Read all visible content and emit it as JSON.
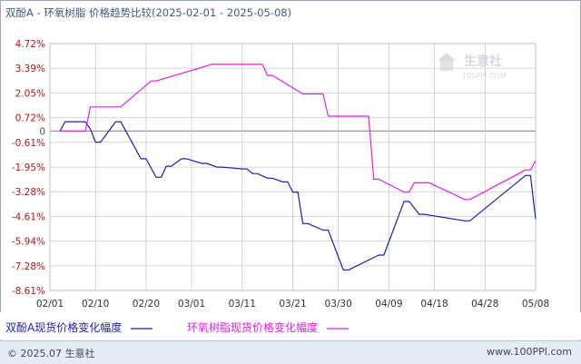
{
  "title": "双酚A - 环氧树脂 价格趋势比较(2025-02-01 - 2025-05-08)",
  "watermark": {
    "name": "生意社",
    "site": "100PPI.COM"
  },
  "footer": {
    "left": "© 2025.07 生意社",
    "right": "www.100PPI.com"
  },
  "colors": {
    "grid": "#c5cbd4",
    "axis": "#9aa7b8",
    "tick_text": "#b01818",
    "bpa": "#1e1eb4",
    "epoxy": "#e21fe2"
  },
  "chart_data": {
    "type": "line",
    "ylim": [
      -8.61,
      4.72
    ],
    "yticks": [
      "4.72%",
      "3.39%",
      "2.05%",
      "0.72%",
      "0",
      "-0.61%",
      "-1.95%",
      "-3.28%",
      "-4.61%",
      "-5.94%",
      "-7.28%",
      "-8.61%"
    ],
    "ytick_values": [
      4.72,
      3.39,
      2.05,
      0.72,
      0,
      -0.61,
      -1.95,
      -3.28,
      -4.61,
      -5.94,
      -7.28,
      -8.61
    ],
    "xlim": [
      "2025-02-01",
      "2025-05-08"
    ],
    "xticks": [
      "02/01",
      "02/10",
      "02/20",
      "03/01",
      "03/11",
      "03/21",
      "03/30",
      "04/09",
      "04/18",
      "04/28",
      "05/08"
    ],
    "xtick_dates": [
      "2025-02-01",
      "2025-02-10",
      "2025-02-20",
      "2025-03-01",
      "2025-03-11",
      "2025-03-21",
      "2025-03-30",
      "2025-04-09",
      "2025-04-18",
      "2025-04-28",
      "2025-05-08"
    ],
    "legend_position": "bottom",
    "series": [
      {
        "name": "双酚A现货价格变化幅度",
        "x": [
          "2025-02-03",
          "2025-02-04",
          "2025-02-08",
          "2025-02-09",
          "2025-02-10",
          "2025-02-11",
          "2025-02-14",
          "2025-02-15",
          "2025-02-19",
          "2025-02-20",
          "2025-02-22",
          "2025-02-23",
          "2025-02-24",
          "2025-02-25",
          "2025-02-27",
          "2025-02-28",
          "2025-03-03",
          "2025-03-04",
          "2025-03-06",
          "2025-03-07",
          "2025-03-11",
          "2025-03-12",
          "2025-03-13",
          "2025-03-14",
          "2025-03-16",
          "2025-03-17",
          "2025-03-19",
          "2025-03-20",
          "2025-03-21",
          "2025-03-22",
          "2025-03-23",
          "2025-03-24",
          "2025-03-27",
          "2025-03-28",
          "2025-03-31",
          "2025-04-01",
          "2025-04-07",
          "2025-04-08",
          "2025-04-12",
          "2025-04-13",
          "2025-04-15",
          "2025-04-16",
          "2025-04-24",
          "2025-04-25",
          "2025-05-06",
          "2025-05-07",
          "2025-05-08"
        ],
        "y": [
          0,
          0.5,
          0.5,
          0.1,
          -0.6,
          -0.6,
          0.5,
          0.5,
          -1.5,
          -1.5,
          -2.5,
          -2.5,
          -1.9,
          -1.9,
          -1.5,
          -1.5,
          -1.75,
          -1.75,
          -1.95,
          -1.95,
          -2.05,
          -2.05,
          -2.3,
          -2.3,
          -2.55,
          -2.55,
          -2.75,
          -2.75,
          -3.3,
          -3.3,
          -5.0,
          -5.0,
          -5.35,
          -5.35,
          -7.5,
          -7.5,
          -6.7,
          -6.7,
          -3.8,
          -3.8,
          -4.5,
          -4.5,
          -4.85,
          -4.85,
          -2.4,
          -2.4,
          -4.75
        ]
      },
      {
        "name": "环氧树脂现货价格变化幅度",
        "x": [
          "2025-02-03",
          "2025-02-08",
          "2025-02-09",
          "2025-02-11",
          "2025-02-14",
          "2025-02-15",
          "2025-02-21",
          "2025-02-22",
          "2025-03-05",
          "2025-03-06",
          "2025-03-08",
          "2025-03-09",
          "2025-03-14",
          "2025-03-15",
          "2025-03-16",
          "2025-03-17",
          "2025-03-23",
          "2025-03-24",
          "2025-03-26",
          "2025-03-27",
          "2025-03-28",
          "2025-03-29",
          "2025-04-04",
          "2025-04-05",
          "2025-04-06",
          "2025-04-07",
          "2025-04-12",
          "2025-04-13",
          "2025-04-14",
          "2025-04-15",
          "2025-04-16",
          "2025-04-17",
          "2025-04-24",
          "2025-04-25",
          "2025-05-06",
          "2025-05-07",
          "2025-05-08"
        ],
        "y": [
          0,
          0,
          1.3,
          1.3,
          1.3,
          1.3,
          2.7,
          2.7,
          3.6,
          3.6,
          3.6,
          3.6,
          3.6,
          3.6,
          3.0,
          3.0,
          2.0,
          2.0,
          2.0,
          2.0,
          0.8,
          0.8,
          0.8,
          0.8,
          -2.6,
          -2.6,
          -3.3,
          -3.3,
          -2.8,
          -2.8,
          -2.8,
          -2.8,
          -3.7,
          -3.7,
          -2.1,
          -2.1,
          -1.6
        ]
      }
    ]
  }
}
